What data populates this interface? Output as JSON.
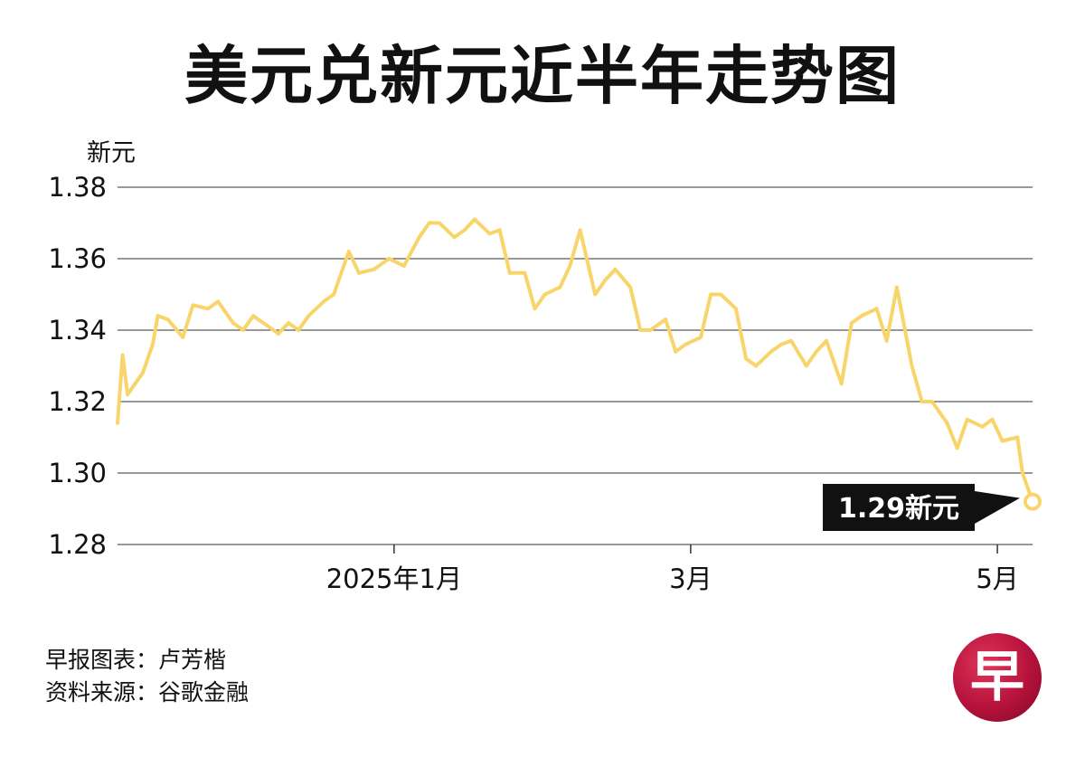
{
  "title": "美元兑新元近半年走势图",
  "credits": {
    "line1": "早报图表：卢芳楷",
    "line2": "资料来源：谷歌金融"
  },
  "logo": {
    "text": "早",
    "color": "#c8184a"
  },
  "colors": {
    "line": "#f8d56b",
    "grid": "#333333",
    "callout_bg": "#111111",
    "callout_text": "#ffffff"
  },
  "chart_data": {
    "type": "line",
    "title": "美元兑新元近半年走势图",
    "ylabel": "新元",
    "ylim": [
      1.28,
      1.38
    ],
    "yticks": [
      1.28,
      1.3,
      1.32,
      1.34,
      1.36,
      1.38
    ],
    "ytick_labels": [
      "1.28",
      "1.30",
      "1.32",
      "1.34",
      "1.36",
      "1.38"
    ],
    "xlim": [
      "2024-11-07",
      "2025-05-08"
    ],
    "xticks": [
      {
        "date": "2025-01-01",
        "label": "2025年1月"
      },
      {
        "date": "2025-03-01",
        "label": "3月"
      },
      {
        "date": "2025-05-01",
        "label": "5月"
      }
    ],
    "grid": "horizontal",
    "series": [
      {
        "name": "",
        "x": [
          "2024-11-07",
          "2024-11-08",
          "2024-11-09",
          "2024-11-11",
          "2024-11-12",
          "2024-11-14",
          "2024-11-15",
          "2024-11-17",
          "2024-11-20",
          "2024-11-22",
          "2024-11-25",
          "2024-11-27",
          "2024-11-30",
          "2024-12-02",
          "2024-12-04",
          "2024-12-06",
          "2024-12-09",
          "2024-12-11",
          "2024-12-13",
          "2024-12-15",
          "2024-12-18",
          "2024-12-20",
          "2024-12-23",
          "2024-12-25",
          "2024-12-28",
          "2024-12-31",
          "2025-01-03",
          "2025-01-06",
          "2025-01-08",
          "2025-01-10",
          "2025-01-13",
          "2025-01-15",
          "2025-01-17",
          "2025-01-20",
          "2025-01-22",
          "2025-01-24",
          "2025-01-27",
          "2025-01-29",
          "2025-01-31",
          "2025-02-03",
          "2025-02-05",
          "2025-02-07",
          "2025-02-10",
          "2025-02-12",
          "2025-02-14",
          "2025-02-17",
          "2025-02-19",
          "2025-02-21",
          "2025-02-24",
          "2025-02-26",
          "2025-02-28",
          "2025-03-03",
          "2025-03-05",
          "2025-03-07",
          "2025-03-10",
          "2025-03-12",
          "2025-03-14",
          "2025-03-17",
          "2025-03-19",
          "2025-03-21",
          "2025-03-24",
          "2025-03-26",
          "2025-03-28",
          "2025-03-31",
          "2025-04-02",
          "2025-04-04",
          "2025-04-07",
          "2025-04-09",
          "2025-04-11",
          "2025-04-14",
          "2025-04-16",
          "2025-04-18",
          "2025-04-21",
          "2025-04-23",
          "2025-04-25",
          "2025-04-28",
          "2025-04-30",
          "2025-05-02",
          "2025-05-05",
          "2025-05-06",
          "2025-05-08"
        ],
        "values": [
          1.314,
          1.333,
          1.322,
          1.326,
          1.328,
          1.336,
          1.344,
          1.343,
          1.338,
          1.347,
          1.346,
          1.348,
          1.342,
          1.34,
          1.344,
          1.342,
          1.339,
          1.342,
          1.34,
          1.344,
          1.348,
          1.35,
          1.362,
          1.356,
          1.357,
          1.36,
          1.358,
          1.366,
          1.37,
          1.37,
          1.366,
          1.368,
          1.371,
          1.367,
          1.368,
          1.356,
          1.356,
          1.346,
          1.35,
          1.352,
          1.358,
          1.368,
          1.35,
          1.354,
          1.357,
          1.352,
          1.34,
          1.34,
          1.343,
          1.334,
          1.336,
          1.338,
          1.35,
          1.35,
          1.346,
          1.332,
          1.33,
          1.334,
          1.336,
          1.337,
          1.33,
          1.334,
          1.337,
          1.325,
          1.342,
          1.344,
          1.346,
          1.337,
          1.352,
          1.33,
          1.32,
          1.32,
          1.314,
          1.307,
          1.315,
          1.313,
          1.315,
          1.309,
          1.31,
          1.3,
          1.292
        ]
      }
    ],
    "annotation": {
      "text": "1.29新元",
      "date": "2025-05-08",
      "value": 1.292
    }
  }
}
